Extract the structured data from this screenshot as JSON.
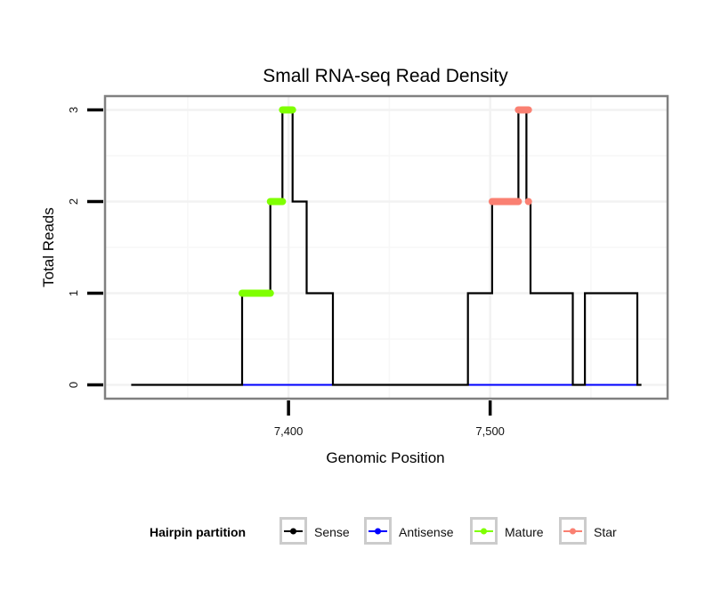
{
  "chart_data": {
    "type": "line",
    "title": "Small RNA-seq Read Density",
    "xlabel": "Genomic Position",
    "ylabel": "Total Reads",
    "xlim": [
      7309,
      7588
    ],
    "ylim": [
      -0.15,
      3.15
    ],
    "x_ticks": [
      7400,
      7500
    ],
    "x_tick_labels": [
      "7,400",
      "7,500"
    ],
    "y_ticks": [
      0,
      1,
      2,
      3
    ],
    "y_tick_labels": [
      "0",
      "1",
      "2",
      "3"
    ],
    "grid": true,
    "legend": {
      "title": "Hairpin partition",
      "placement": "bottom",
      "entries": [
        "Sense",
        "Antisense",
        "Mature",
        "Star"
      ]
    },
    "series": [
      {
        "name": "Sense",
        "color": "#000000",
        "kind": "line",
        "x": [
          7322,
          7377,
          7377,
          7391,
          7391,
          7397,
          7397,
          7402,
          7402,
          7409,
          7409,
          7422,
          7422,
          7489,
          7489,
          7501,
          7501,
          7514,
          7514,
          7518,
          7518,
          7520,
          7520,
          7541,
          7541,
          7547,
          7547,
          7573,
          7573,
          7575
        ],
        "y": [
          0,
          0,
          1,
          1,
          2,
          2,
          3,
          3,
          2,
          2,
          1,
          1,
          0,
          0,
          1,
          1,
          2,
          2,
          3,
          3,
          2,
          2,
          1,
          1,
          0,
          0,
          1,
          1,
          0,
          0
        ]
      },
      {
        "name": "Antisense",
        "color": "#0000ff",
        "kind": "line",
        "segments": [
          {
            "x": [
              7377,
              7422
            ],
            "y": [
              0,
              0
            ]
          },
          {
            "x": [
              7489,
              7541
            ],
            "y": [
              0,
              0
            ]
          },
          {
            "x": [
              7547,
              7573
            ],
            "y": [
              0,
              0
            ]
          }
        ]
      },
      {
        "name": "Mature",
        "color": "#7fff00",
        "kind": "points",
        "segments": [
          {
            "x": [
              7377,
              7391
            ],
            "y": 1
          },
          {
            "x": [
              7391,
              7397
            ],
            "y": 2
          },
          {
            "x": [
              7397,
              7402
            ],
            "y": 3
          }
        ]
      },
      {
        "name": "Star",
        "color": "#fa8072",
        "kind": "points",
        "segments": [
          {
            "x": [
              7501,
              7514
            ],
            "y": 2
          },
          {
            "x": [
              7519,
              7519
            ],
            "y": 2
          },
          {
            "x": [
              7514,
              7519
            ],
            "y": 3
          }
        ]
      }
    ]
  }
}
